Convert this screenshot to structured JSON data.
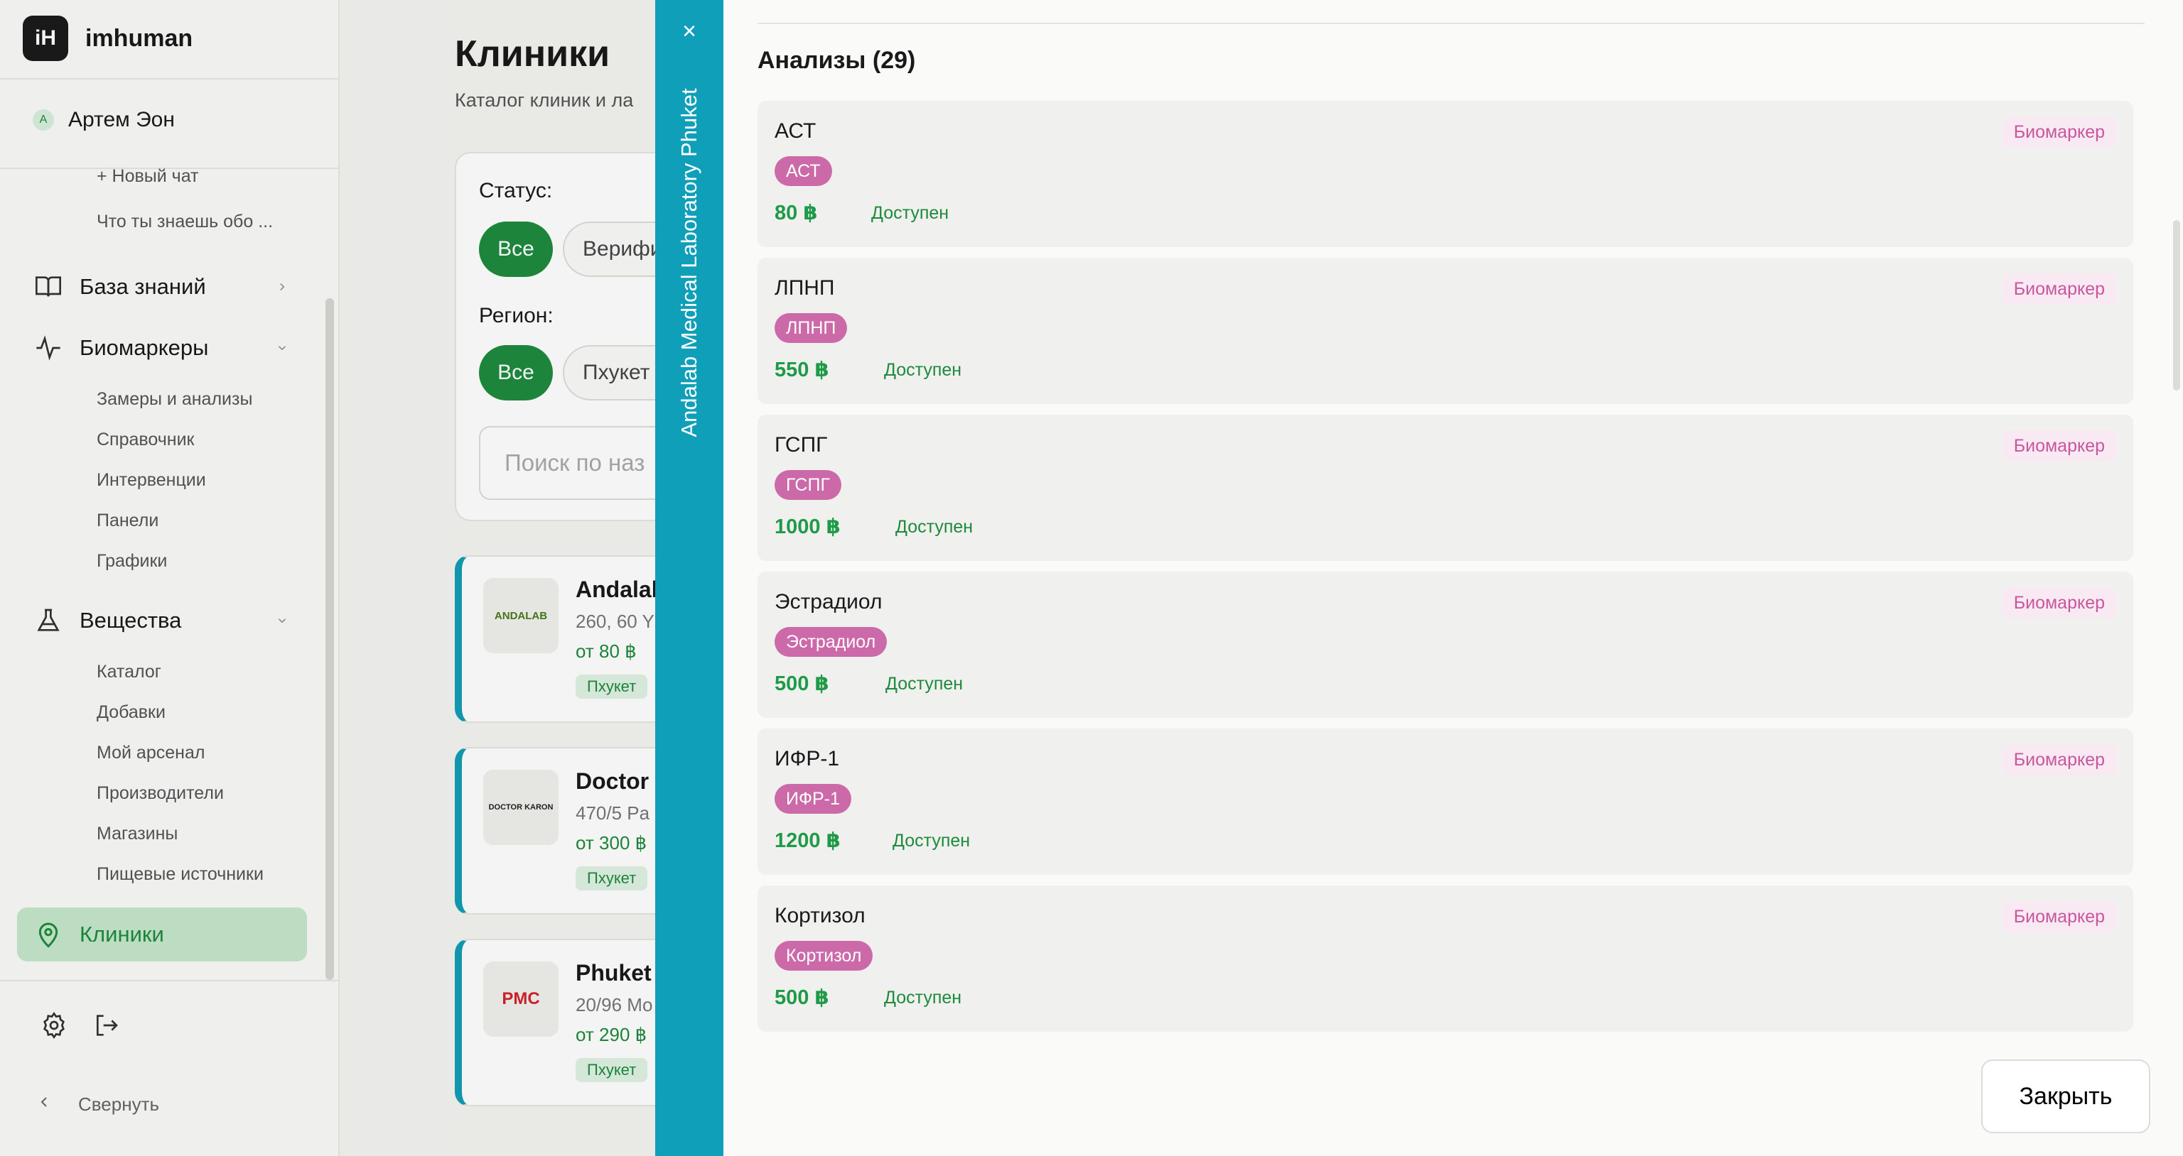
{
  "app": {
    "logo_text": "iH",
    "name": "imhuman"
  },
  "user": {
    "initial": "А",
    "name": "Артем Эон"
  },
  "sidebar": {
    "chat_items": [
      "+ Новый чат",
      "Что ты знаешь обо ..."
    ],
    "sections": [
      {
        "label": "База знаний",
        "icon": "book-icon",
        "chevron": "chevron-right-icon"
      },
      {
        "label": "Биомаркеры",
        "icon": "pulse-icon",
        "chevron": "chevron-down-icon",
        "items": [
          "Замеры и анализы",
          "Справочник",
          "Интервенции",
          "Панели",
          "Графики"
        ]
      },
      {
        "label": "Вещества",
        "icon": "flask-icon",
        "chevron": "chevron-down-icon",
        "items": [
          "Каталог",
          "Добавки",
          "Мой арсенал",
          "Производители",
          "Магазины",
          "Пищевые источники"
        ]
      },
      {
        "label": "Клиники",
        "icon": "map-pin-icon",
        "active": true
      }
    ],
    "settings_icon": "gear-icon",
    "logout_icon": "logout-icon",
    "collapse_label": "Свернуть"
  },
  "main": {
    "title": "Клиники",
    "subtitle": "Каталог клиник и ла",
    "filters": {
      "status_label": "Статус:",
      "status_options": [
        "Все",
        "Верифи"
      ],
      "region_label": "Регион:",
      "region_options": [
        "Все",
        "Пхукет"
      ],
      "search_placeholder": "Поиск по наз"
    },
    "clinics": [
      {
        "name": "Andalab",
        "address": "260, 60 Y",
        "price": "от 80 ฿",
        "region": "Пхукет",
        "logo": "ANDALAB"
      },
      {
        "name": "Doctor K",
        "address": "470/5 Pa",
        "price": "от 300 ฿",
        "region": "Пхукет",
        "logo": "DOCTOR KARON"
      },
      {
        "name": "Phuket m",
        "address": "20/96 Mo",
        "price": "от 290 ฿",
        "region": "Пхукет",
        "logo": "PMC"
      }
    ]
  },
  "drawer": {
    "title": "Andalab Medical Laboratory Phuket",
    "close_icon": "close-icon",
    "list_title": "Анализы (29)",
    "close_button": "Закрыть",
    "tests": [
      {
        "name": "АСТ",
        "chip": "АСТ",
        "price": "80 ฿",
        "status": "Доступен",
        "type": "Биомаркер"
      },
      {
        "name": "ЛПНП",
        "chip": "ЛПНП",
        "price": "550 ฿",
        "status": "Доступен",
        "type": "Биомаркер"
      },
      {
        "name": "ГСПГ",
        "chip": "ГСПГ",
        "price": "1000 ฿",
        "status": "Доступен",
        "type": "Биомаркер"
      },
      {
        "name": "Эстрадиол",
        "chip": "Эстрадиол",
        "price": "500 ฿",
        "status": "Доступен",
        "type": "Биомаркер"
      },
      {
        "name": "ИФР-1",
        "chip": "ИФР-1",
        "price": "1200 ฿",
        "status": "Доступен",
        "type": "Биомаркер"
      },
      {
        "name": "Кортизол",
        "chip": "Кортизол",
        "price": "500 ฿",
        "status": "Доступен",
        "type": "Биомаркер"
      }
    ]
  },
  "colors": {
    "accent_green": "#1f8a3e",
    "drawer_teal": "#109fb9",
    "chip_pink": "#cc6aa9"
  }
}
